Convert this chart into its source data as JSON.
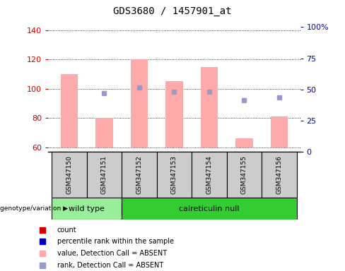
{
  "title": "GDS3680 / 1457901_at",
  "samples": [
    "GSM347150",
    "GSM347151",
    "GSM347152",
    "GSM347153",
    "GSM347154",
    "GSM347155",
    "GSM347156"
  ],
  "groups": [
    {
      "label": "wild type",
      "samples_idx": [
        0,
        1
      ],
      "color": "#90ee90"
    },
    {
      "label": "calreticulin null",
      "samples_idx": [
        2,
        3,
        4,
        5,
        6
      ],
      "color": "#33cc33"
    }
  ],
  "pink_bar_tops": [
    110,
    80,
    120,
    105,
    115,
    66,
    81
  ],
  "pink_bar_bottom": 60,
  "blue_dot_values": [
    null,
    97,
    101,
    98,
    98,
    92,
    94
  ],
  "ylim_left": [
    57,
    142
  ],
  "ylim_right": [
    0,
    100
  ],
  "left_yticks": [
    60,
    80,
    100,
    120,
    140
  ],
  "right_yticks": [
    0,
    25,
    50,
    75,
    100
  ],
  "right_yticklabels": [
    "0",
    "25",
    "50",
    "75",
    "100%"
  ],
  "pink_color": "#ffaaaa",
  "blue_dot_color": "#9999cc",
  "bar_width": 0.5,
  "label_color_left": "#cc0000",
  "label_color_right": "#0000bb",
  "legend_items": [
    {
      "label": "count",
      "color": "#cc0000"
    },
    {
      "label": "percentile rank within the sample",
      "color": "#0000bb"
    },
    {
      "label": "value, Detection Call = ABSENT",
      "color": "#ffaaaa"
    },
    {
      "label": "rank, Detection Call = ABSENT",
      "color": "#9999cc"
    }
  ],
  "genotype_label": "genotype/variation",
  "sample_box_color": "#cccccc",
  "wt_color": "#99ee99",
  "cn_color": "#33cc33"
}
